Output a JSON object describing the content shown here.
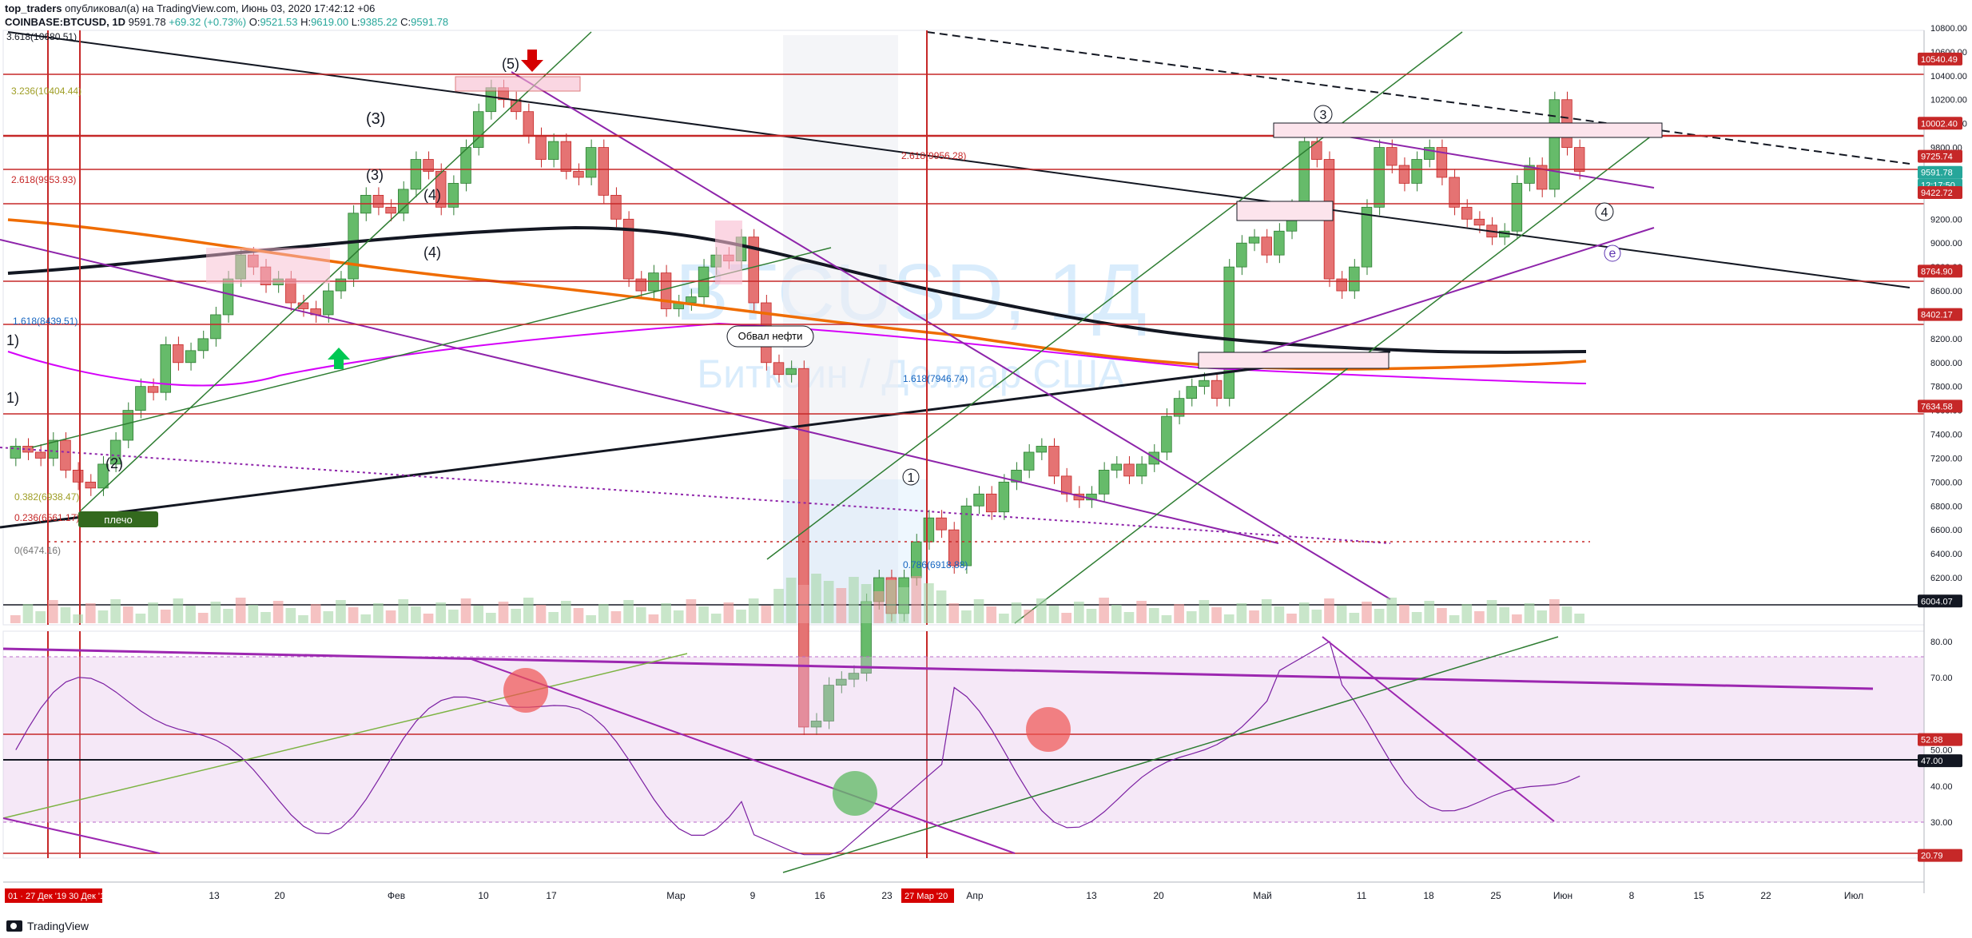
{
  "header": {
    "author": "top_traders",
    "published": "опубликовал(а) на TradingView.com, Июнь 03, 2020 17:42:12 +06",
    "symbol": "COINBASE:BTCUSD, 1D",
    "last": "9591.78",
    "change": "+69.32 (+0.73%)",
    "open_label": "O:",
    "open": "9521.53",
    "high_label": "H:",
    "high": "9619.00",
    "low_label": "L:",
    "low": "9385.22",
    "close_label": "C:",
    "close": "9591.78"
  },
  "watermark": {
    "line1": "BTCUSD, 1Д",
    "line2": "Биткоин / Доллар США"
  },
  "annotations": {
    "oil_crash": "Обвал нефти",
    "plecho": "плечо",
    "fib_3618": "3.618(10680.51)",
    "fib_3236": "3.236(10404.44)",
    "fib_2618": "2.618(9953.93)",
    "fib_2618b": "2.618(9956.28)",
    "fib_1618": "1.618(8439.51)",
    "fib_1618b": "1.618(7946.74)",
    "fib_0786": "0.786(6918.88)",
    "fib_0382": "0.382(6938.47)",
    "fib_0236": "0.236(6561.17)",
    "fib_0": "0(6474.16)",
    "wave_3": "(3)",
    "wave_5": "(5)",
    "wave_4": "(4)",
    "wave_2": "(2)",
    "wave_1": "1)",
    "circ_3": "3",
    "circ_4": "4",
    "circ_e": "e",
    "circ_1": "1"
  },
  "price_axis": {
    "ticks": [
      "10800.00",
      "10600.00",
      "10400.00",
      "10200.00",
      "10000.00",
      "9800.00",
      "9600.00",
      "9400.00",
      "9200.00",
      "9000.00",
      "8800.00",
      "8600.00",
      "8400.00",
      "8200.00",
      "8000.00",
      "7800.00",
      "7600.00",
      "7400.00",
      "7200.00",
      "7000.00",
      "6800.00",
      "6600.00",
      "6400.00",
      "6200.00"
    ],
    "tags": [
      {
        "text": "10540.49",
        "color": "#c62828"
      },
      {
        "text": "10002.40",
        "color": "#c62828"
      },
      {
        "text": "9725.74",
        "color": "#c62828"
      },
      {
        "text": "9591.78",
        "color": "#26a69a"
      },
      {
        "text": "12:17:50",
        "color": "#26a69a"
      },
      {
        "text": "9422.72",
        "color": "#c62828"
      },
      {
        "text": "8764.90",
        "color": "#c62828"
      },
      {
        "text": "8402.17",
        "color": "#c62828"
      },
      {
        "text": "7634.58",
        "color": "#c62828"
      },
      {
        "text": "6004.07",
        "color": "#131722"
      }
    ]
  },
  "rsi_axis": {
    "ticks": [
      "80.00",
      "70.00",
      "50.00",
      "40.00",
      "30.00"
    ],
    "tags": [
      {
        "text": "52.88",
        "color": "#c62828"
      },
      {
        "text": "47.00",
        "color": "#131722"
      },
      {
        "text": "20.79",
        "color": "#c62828"
      }
    ]
  },
  "time_axis": {
    "labels": [
      "13",
      "20",
      "Фев",
      "10",
      "17",
      "Мар",
      "9",
      "16",
      "23",
      "Апр",
      "13",
      "20",
      "Май",
      "11",
      "18",
      "25",
      "Июн",
      "8",
      "15",
      "22",
      "Июл"
    ],
    "tag_left": "01 · 27 Дек '19  30 Дек '19",
    "tag_mid": "27 Мар '20"
  },
  "footer": {
    "brand": "TradingView"
  },
  "chart_data": {
    "type": "candlestick",
    "title": "COINBASE:BTCUSD, 1D",
    "ylim": [
      6004.07,
      10800
    ],
    "levels": [
      10540.49,
      10002.4,
      9725.74,
      9422.72,
      8764.9,
      8402.17,
      7634.58,
      6004.07
    ],
    "last_price": 9591.78,
    "rsi": {
      "ylim": [
        20,
        85
      ],
      "levels": [
        52.88,
        47.0,
        20.79
      ],
      "band": [
        30,
        75
      ]
    }
  }
}
